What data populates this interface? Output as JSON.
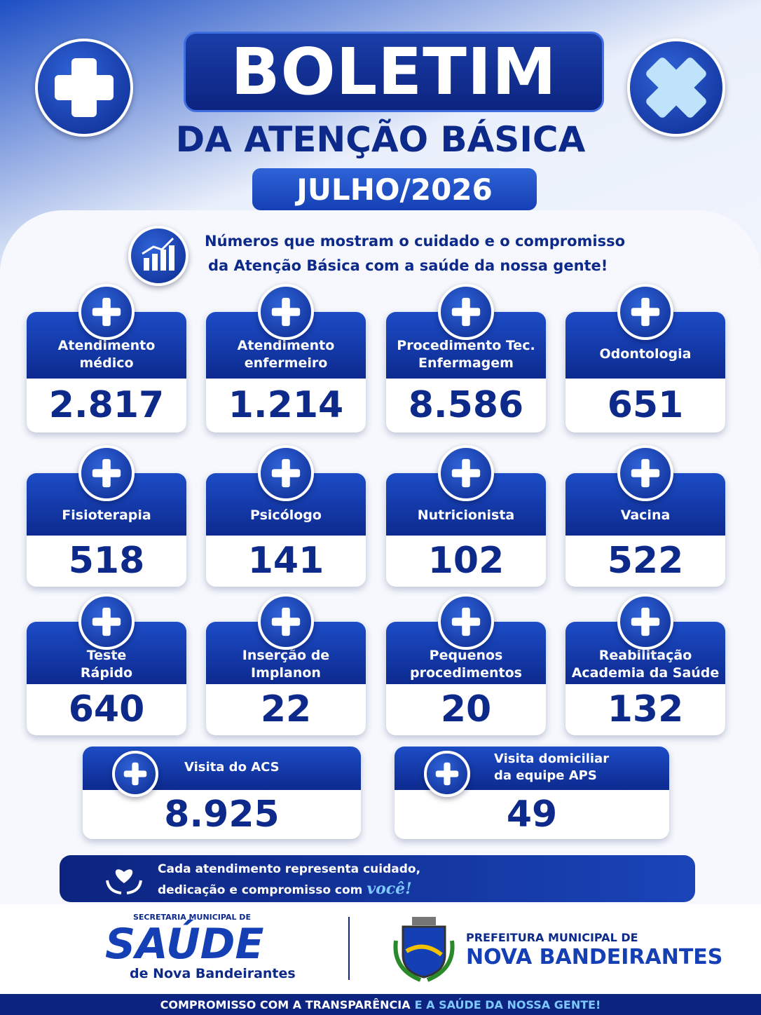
{
  "header": {
    "title": "BOLETIM",
    "subtitle": "DA ATENÇÃO BÁSICA",
    "period": "JULHO/2026"
  },
  "intro": {
    "lines": [
      "Números que mostram o cuidado e o compromisso",
      "da Atenção Básica com a saúde da nossa gente!"
    ]
  },
  "cards": [
    {
      "label": [
        "Atendimento",
        "médico"
      ],
      "value": "2.817"
    },
    {
      "label": [
        "Atendimento",
        "enfermeiro"
      ],
      "value": "1.214"
    },
    {
      "label": [
        "Procedimento Tec.",
        "Enfermagem"
      ],
      "value": "8.586"
    },
    {
      "label": [
        "Odontologia"
      ],
      "value": "651"
    },
    {
      "label": [
        "Fisioterapia"
      ],
      "value": "518"
    },
    {
      "label": [
        "Psicólogo"
      ],
      "value": "141"
    },
    {
      "label": [
        "Nutricionista"
      ],
      "value": "102"
    },
    {
      "label": [
        "Vacina"
      ],
      "value": "522"
    },
    {
      "label": [
        "Teste",
        "Rápido"
      ],
      "value": "640"
    },
    {
      "label": [
        "Inserção de",
        "Implanon"
      ],
      "value": "22"
    },
    {
      "label": [
        "Pequenos",
        "procedimentos"
      ],
      "value": "20"
    },
    {
      "label": [
        "Reabilitação",
        "Academia da Saúde"
      ],
      "value": "132"
    },
    {
      "label": [
        "Visita do ACS"
      ],
      "value": "8.925"
    },
    {
      "label": [
        "Visita domiciliar",
        "da equipe APS"
      ],
      "value": "49"
    }
  ],
  "banner": {
    "line1": "Cada atendimento representa cuidado,",
    "line2": "dedicação e compromisso com",
    "accent": "você!"
  },
  "footer": {
    "secretaria": {
      "top": "SECRETARIA MUNICIPAL DE",
      "logo": "SAÚDE",
      "bottom": "de Nova Bandeirantes"
    },
    "prefeitura": {
      "top": "PREFEITURA MUNICIPAL DE",
      "name": "NOVA BANDEIRANTES"
    },
    "bar": {
      "main": "COMPROMISSO COM A TRANSPARÊNCIA",
      "accent": "E A SAÚDE DA NOSSA GENTE!"
    }
  }
}
